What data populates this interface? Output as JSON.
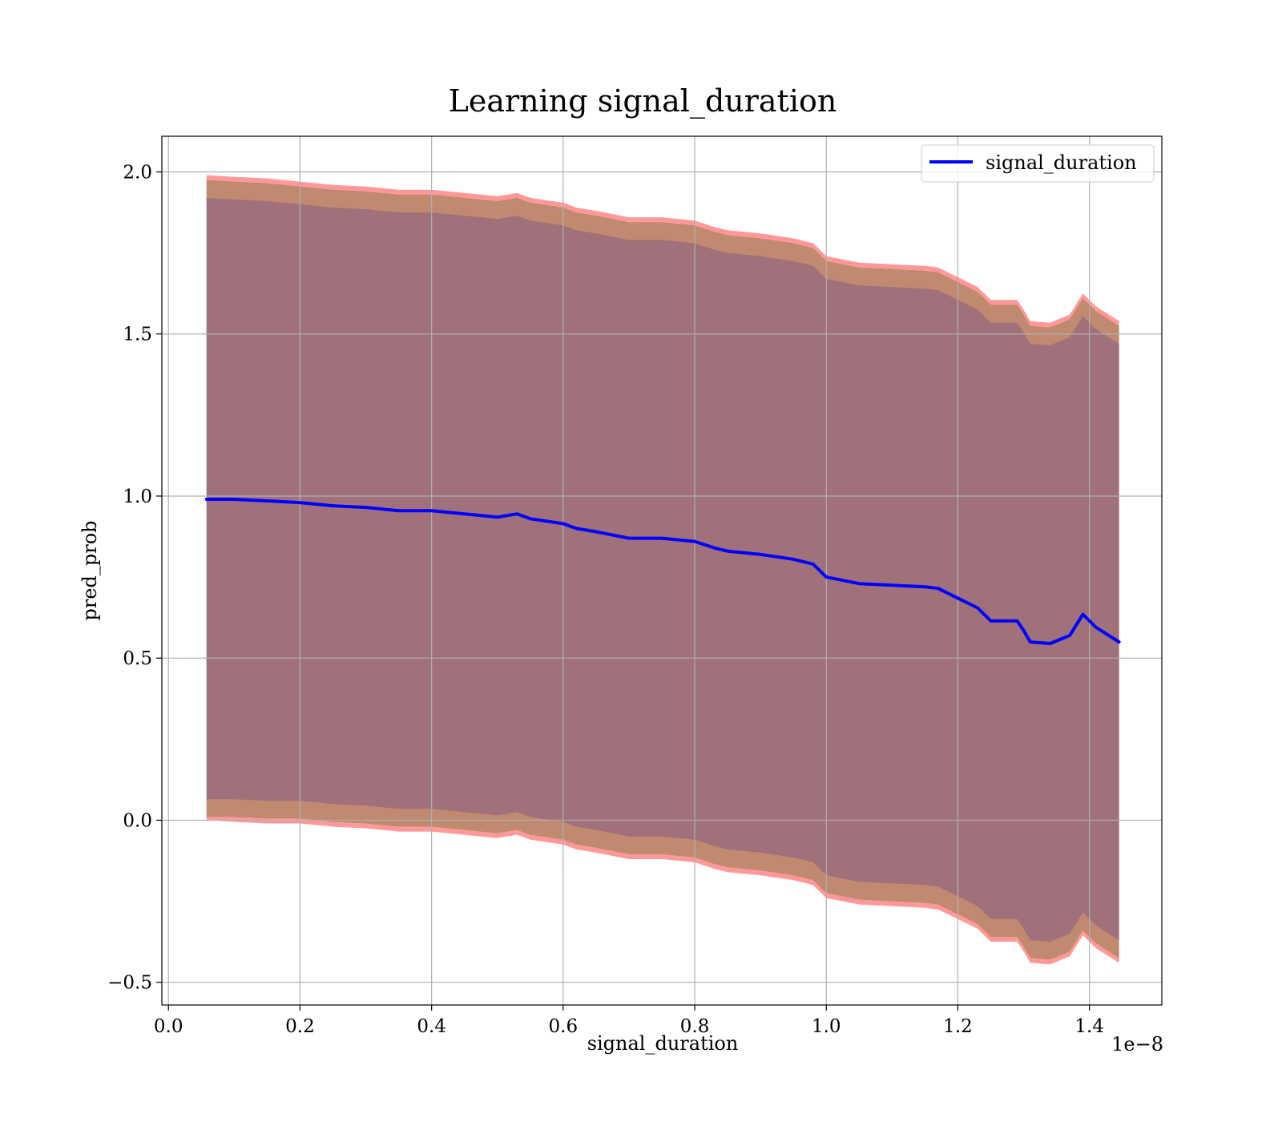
{
  "chart_data": {
    "type": "line",
    "title": "Learning signal_duration",
    "xlabel": "signal_duration",
    "ylabel": "pred_prob",
    "x_offset_label": "1e−8",
    "xlim": [
      -0.01,
      1.51
    ],
    "ylim": [
      -0.57,
      2.11
    ],
    "x_ticks": [
      0.0,
      0.2,
      0.4,
      0.6,
      0.8,
      1.0,
      1.2,
      1.4
    ],
    "x_tick_labels": [
      "0.0",
      "0.2",
      "0.4",
      "0.6",
      "0.8",
      "1.0",
      "1.2",
      "1.4"
    ],
    "y_ticks": [
      -0.5,
      0.0,
      0.5,
      1.0,
      1.5,
      2.0
    ],
    "y_tick_labels": [
      "−0.5",
      "0.0",
      "0.5",
      "1.0",
      "1.5",
      "2.0"
    ],
    "grid": true,
    "legend_position": "top-right",
    "colors": {
      "line": "#0000ff",
      "band_outer": "#ff8080",
      "band_mid": "#c08a70",
      "band_inner": "#a0717a",
      "grid": "#b0b0b0"
    },
    "series": [
      {
        "name": "signal_duration",
        "x": [
          0.058,
          0.1,
          0.15,
          0.2,
          0.25,
          0.3,
          0.35,
          0.4,
          0.45,
          0.5,
          0.53,
          0.55,
          0.6,
          0.62,
          0.65,
          0.7,
          0.75,
          0.8,
          0.83,
          0.85,
          0.9,
          0.95,
          0.98,
          1.0,
          1.05,
          1.1,
          1.15,
          1.17,
          1.2,
          1.23,
          1.25,
          1.29,
          1.3,
          1.31,
          1.34,
          1.37,
          1.39,
          1.41,
          1.445
        ],
        "y": [
          0.99,
          0.99,
          0.985,
          0.98,
          0.97,
          0.965,
          0.955,
          0.955,
          0.945,
          0.935,
          0.945,
          0.93,
          0.915,
          0.9,
          0.89,
          0.87,
          0.87,
          0.86,
          0.84,
          0.83,
          0.82,
          0.805,
          0.79,
          0.75,
          0.73,
          0.725,
          0.72,
          0.715,
          0.685,
          0.655,
          0.615,
          0.615,
          0.585,
          0.55,
          0.545,
          0.57,
          0.635,
          0.595,
          0.55
        ]
      }
    ],
    "bands": [
      {
        "x": [
          0.058,
          0.1,
          0.15,
          0.2,
          0.25,
          0.3,
          0.35,
          0.4,
          0.45,
          0.5,
          0.53,
          0.55,
          0.6,
          0.62,
          0.65,
          0.7,
          0.75,
          0.8,
          0.83,
          0.85,
          0.9,
          0.95,
          0.98,
          1.0,
          1.05,
          1.1,
          1.15,
          1.17,
          1.2,
          1.23,
          1.25,
          1.29,
          1.3,
          1.31,
          1.34,
          1.37,
          1.39,
          1.41,
          1.445
        ],
        "upper": [
          1.99,
          1.985,
          1.98,
          1.97,
          1.96,
          1.955,
          1.945,
          1.945,
          1.935,
          1.925,
          1.935,
          1.92,
          1.905,
          1.89,
          1.88,
          1.86,
          1.86,
          1.85,
          1.83,
          1.82,
          1.81,
          1.795,
          1.78,
          1.74,
          1.72,
          1.715,
          1.71,
          1.705,
          1.675,
          1.645,
          1.605,
          1.605,
          1.575,
          1.54,
          1.535,
          1.56,
          1.625,
          1.585,
          1.54
        ],
        "lower": [
          0.0,
          -0.005,
          -0.01,
          -0.01,
          -0.02,
          -0.025,
          -0.035,
          -0.035,
          -0.045,
          -0.055,
          -0.045,
          -0.06,
          -0.075,
          -0.09,
          -0.1,
          -0.12,
          -0.12,
          -0.13,
          -0.15,
          -0.16,
          -0.17,
          -0.185,
          -0.2,
          -0.24,
          -0.26,
          -0.265,
          -0.27,
          -0.275,
          -0.305,
          -0.335,
          -0.375,
          -0.375,
          -0.405,
          -0.44,
          -0.445,
          -0.42,
          -0.355,
          -0.395,
          -0.44
        ]
      },
      {
        "x": [
          0.058,
          0.1,
          0.15,
          0.2,
          0.25,
          0.3,
          0.35,
          0.4,
          0.45,
          0.5,
          0.53,
          0.55,
          0.6,
          0.62,
          0.65,
          0.7,
          0.75,
          0.8,
          0.83,
          0.85,
          0.9,
          0.95,
          0.98,
          1.0,
          1.05,
          1.1,
          1.15,
          1.17,
          1.2,
          1.23,
          1.25,
          1.29,
          1.3,
          1.31,
          1.34,
          1.37,
          1.39,
          1.41,
          1.445
        ],
        "upper": [
          1.975,
          1.97,
          1.965,
          1.955,
          1.945,
          1.94,
          1.93,
          1.93,
          1.92,
          1.91,
          1.92,
          1.905,
          1.89,
          1.875,
          1.865,
          1.845,
          1.845,
          1.835,
          1.815,
          1.805,
          1.795,
          1.78,
          1.765,
          1.725,
          1.705,
          1.7,
          1.695,
          1.69,
          1.66,
          1.63,
          1.59,
          1.59,
          1.56,
          1.525,
          1.52,
          1.545,
          1.61,
          1.57,
          1.525
        ],
        "lower": [
          0.01,
          0.01,
          0.005,
          0.005,
          -0.005,
          -0.01,
          -0.02,
          -0.02,
          -0.03,
          -0.04,
          -0.03,
          -0.045,
          -0.06,
          -0.075,
          -0.085,
          -0.105,
          -0.105,
          -0.115,
          -0.135,
          -0.145,
          -0.155,
          -0.17,
          -0.185,
          -0.225,
          -0.245,
          -0.25,
          -0.255,
          -0.26,
          -0.29,
          -0.32,
          -0.36,
          -0.36,
          -0.39,
          -0.425,
          -0.43,
          -0.405,
          -0.34,
          -0.38,
          -0.425
        ]
      },
      {
        "x": [
          0.058,
          0.1,
          0.15,
          0.2,
          0.25,
          0.3,
          0.35,
          0.4,
          0.45,
          0.5,
          0.53,
          0.55,
          0.6,
          0.62,
          0.65,
          0.7,
          0.75,
          0.8,
          0.83,
          0.85,
          0.9,
          0.95,
          0.98,
          1.0,
          1.05,
          1.1,
          1.15,
          1.17,
          1.2,
          1.23,
          1.25,
          1.29,
          1.3,
          1.31,
          1.34,
          1.37,
          1.39,
          1.41,
          1.445
        ],
        "upper": [
          1.92,
          1.915,
          1.91,
          1.9,
          1.89,
          1.885,
          1.875,
          1.875,
          1.865,
          1.855,
          1.865,
          1.85,
          1.835,
          1.82,
          1.81,
          1.79,
          1.79,
          1.78,
          1.76,
          1.75,
          1.74,
          1.725,
          1.71,
          1.67,
          1.65,
          1.645,
          1.64,
          1.635,
          1.605,
          1.575,
          1.535,
          1.535,
          1.505,
          1.47,
          1.465,
          1.49,
          1.555,
          1.515,
          1.47
        ],
        "lower": [
          0.065,
          0.065,
          0.06,
          0.06,
          0.05,
          0.045,
          0.035,
          0.035,
          0.025,
          0.015,
          0.025,
          0.01,
          -0.005,
          -0.02,
          -0.03,
          -0.05,
          -0.05,
          -0.06,
          -0.08,
          -0.09,
          -0.1,
          -0.115,
          -0.13,
          -0.17,
          -0.19,
          -0.195,
          -0.2,
          -0.205,
          -0.235,
          -0.265,
          -0.305,
          -0.305,
          -0.335,
          -0.37,
          -0.375,
          -0.35,
          -0.285,
          -0.325,
          -0.37
        ]
      }
    ]
  }
}
